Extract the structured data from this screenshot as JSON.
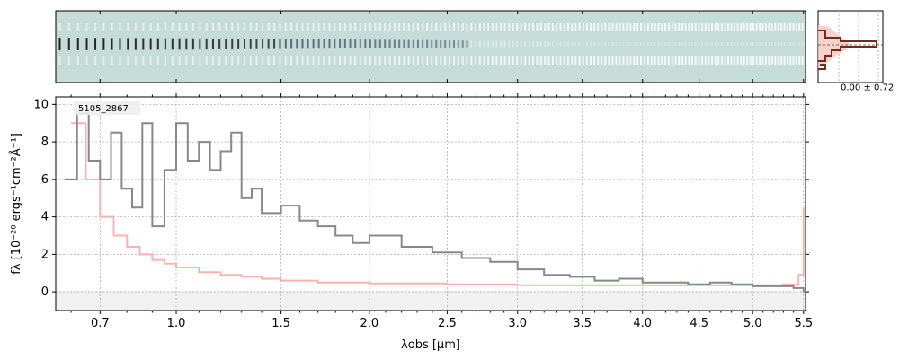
{
  "chart_data": [
    {
      "type": "heatmap",
      "description_role": "2D spectrum cutout",
      "colormap": [
        "#c6dcd9",
        "#ffffff",
        "#24304a",
        "#000000"
      ],
      "xlim": [
        0.55,
        5.52
      ]
    },
    {
      "type": "line",
      "object_label": "5105_2867",
      "xlabel": "λobs [μm]",
      "ylabel": "fλ [10⁻²⁰ ergs⁻¹cm⁻²Å⁻¹]",
      "xlim": [
        0.55,
        5.52
      ],
      "ylim": [
        -1.0,
        10.4
      ],
      "xticks": [
        0.7,
        1.0,
        1.5,
        2.0,
        2.5,
        3.0,
        3.5,
        4.0,
        4.5,
        5.0,
        5.5
      ],
      "xtick_labels": [
        "0.7",
        "1.0",
        "1.5",
        "2.0",
        "2.5",
        "3.0",
        "3.5",
        "4.0",
        "4.5",
        "5.0",
        "5.5"
      ],
      "yticks": [
        0,
        2,
        4,
        6,
        8,
        10
      ],
      "ytick_labels": [
        "0",
        "2",
        "4",
        "6",
        "8",
        "10"
      ],
      "grid": true,
      "series": [
        {
          "role": "flux",
          "color": "#888888",
          "x": [
            0.58,
            0.62,
            0.66,
            0.7,
            0.74,
            0.78,
            0.82,
            0.86,
            0.9,
            0.95,
            1.0,
            1.05,
            1.1,
            1.15,
            1.2,
            1.25,
            1.3,
            1.35,
            1.4,
            1.5,
            1.6,
            1.7,
            1.8,
            1.9,
            2.0,
            2.2,
            2.4,
            2.6,
            2.8,
            3.0,
            3.2,
            3.4,
            3.6,
            3.8,
            4.0,
            4.2,
            4.4,
            4.6,
            4.8,
            5.0,
            5.2,
            5.4,
            5.5
          ],
          "y": [
            6.0,
            9.5,
            7.0,
            6.0,
            8.5,
            5.5,
            4.5,
            9.0,
            3.5,
            6.5,
            9.0,
            7.0,
            8.0,
            6.5,
            7.5,
            8.5,
            5.0,
            5.5,
            4.2,
            4.6,
            3.8,
            3.5,
            3.0,
            2.6,
            3.0,
            2.4,
            2.1,
            1.8,
            1.6,
            1.2,
            0.9,
            0.8,
            0.6,
            0.7,
            0.5,
            0.5,
            0.4,
            0.5,
            0.4,
            0.3,
            0.3,
            0.2,
            0.0
          ]
        },
        {
          "role": "error",
          "color": "#f4b5b0",
          "x": [
            0.6,
            0.65,
            0.7,
            0.75,
            0.8,
            0.85,
            0.9,
            0.95,
            1.0,
            1.1,
            1.2,
            1.3,
            1.4,
            1.5,
            1.7,
            2.0,
            2.5,
            3.0,
            3.5,
            4.0,
            4.5,
            5.0,
            5.3,
            5.45,
            5.5
          ],
          "y": [
            9.0,
            6.0,
            4.0,
            3.0,
            2.4,
            2.0,
            1.7,
            1.5,
            1.3,
            1.05,
            0.9,
            0.8,
            0.7,
            0.6,
            0.5,
            0.45,
            0.4,
            0.35,
            0.35,
            0.35,
            0.35,
            0.35,
            0.4,
            0.9,
            4.5
          ]
        }
      ]
    },
    {
      "type": "histogram",
      "annotation": "0.00 ± 0.72"
    }
  ]
}
